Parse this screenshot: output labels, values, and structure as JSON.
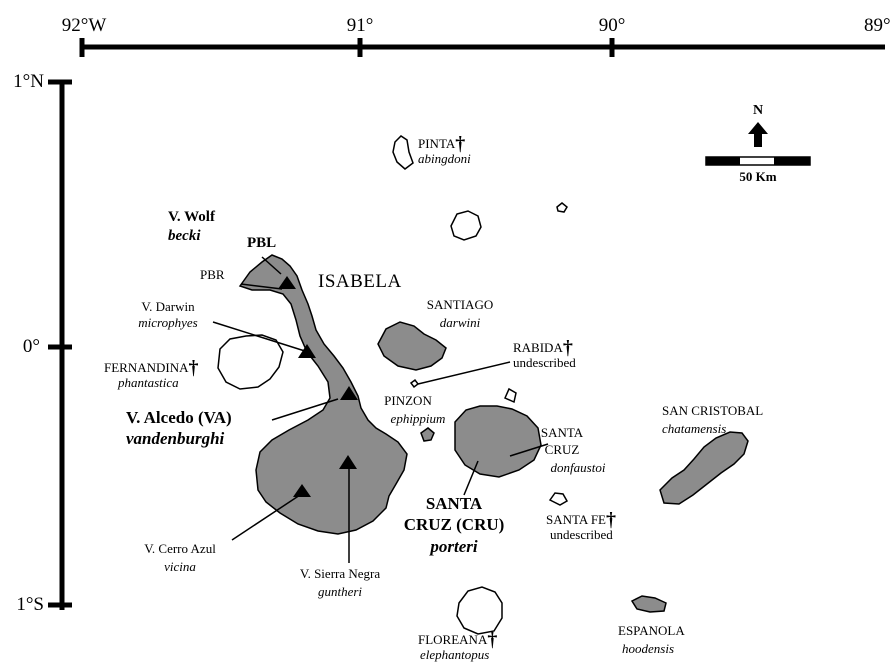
{
  "axis": {
    "top_ticks": [
      "92°W",
      "91°",
      "90°",
      "89°"
    ],
    "left_ticks": [
      "1°N",
      "0°",
      "1°S"
    ]
  },
  "north_arrow": {
    "label": "N"
  },
  "scale_bar": {
    "label": "50 Km"
  },
  "extinct_symbol": "†",
  "labels": {
    "wolf": "V. Wolf",
    "becki": "becki",
    "pbl": "PBL",
    "pbr": "PBR",
    "isabela": "ISABELA",
    "darwin": "V. Darwin",
    "microphyes": "microphyes",
    "fernandina": "FERNANDINA",
    "phantastica": "phantastica",
    "alcedo": "V. Alcedo (VA)",
    "vandenburghi": "vandenburghi",
    "cerro_azul": "V. Cerro Azul",
    "vicina": "vicina",
    "sierra_negra": "V. Sierra Negra",
    "guntheri": "guntheri",
    "pinta": "PINTA",
    "abingdoni": "abingdoni",
    "santiago": "SANTIAGO",
    "darwini": "darwini",
    "rabida": "RABIDA",
    "rabida_sp": "undescribed",
    "pinzon": "PINZON",
    "ephippium": "ephippium",
    "santa_cruz_line1": "SANTA",
    "santa_cruz_line2": "CRUZ",
    "donfaustoi": "donfaustoi",
    "cru_line1": "SANTA",
    "cru_line2": "CRUZ (CRU)",
    "porteri": "porteri",
    "santa_fe": "SANTA FE",
    "santa_fe_sp": "undescribed",
    "san_cristobal": "SAN CRISTOBAL",
    "chatamensis": "chatamensis",
    "floreana": "FLOREANA",
    "elephantopus": "elephantopus",
    "espanola": "ESPANOLA",
    "hoodensis": "hoodensis"
  },
  "colors": {
    "land": "#8c8c8c",
    "outline": "#000000",
    "unsampled": "#ffffff"
  }
}
